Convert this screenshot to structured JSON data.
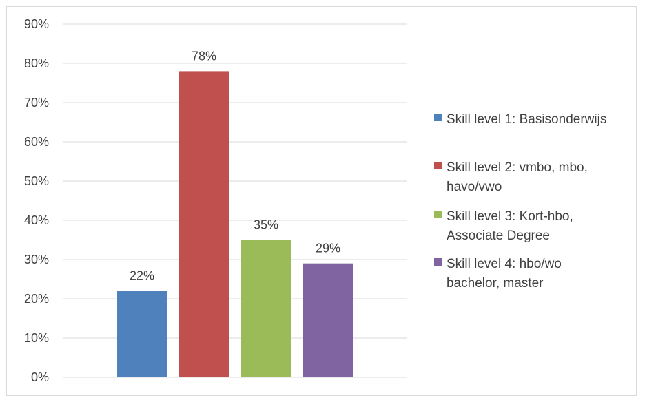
{
  "chart_data": {
    "type": "bar",
    "title": "",
    "xlabel": "",
    "ylabel": "",
    "ylim": [
      0,
      90
    ],
    "yticks": [
      "0%",
      "10%",
      "20%",
      "30%",
      "40%",
      "50%",
      "60%",
      "70%",
      "80%",
      "90%"
    ],
    "grid": true,
    "legend_position": "right",
    "series": [
      {
        "name": "Skill level 1: Basisonderwijs",
        "legend_lines": [
          "Skill level 1: Basisonderwijs"
        ],
        "value": 22,
        "label": "22%",
        "color": "#4f81bd"
      },
      {
        "name": "Skill level 2: vmbo, mbo, havo/vwo",
        "legend_lines": [
          "Skill level 2: vmbo, mbo,",
          "havo/vwo"
        ],
        "value": 78,
        "label": "78%",
        "color": "#c0504d"
      },
      {
        "name": "Skill level 3: Kort-hbo, Associate Degree",
        "legend_lines": [
          "Skill level 3: Kort-hbo,",
          "Associate Degree"
        ],
        "value": 35,
        "label": "35%",
        "color": "#9bbb59"
      },
      {
        "name": "Skill level 4: hbo/wo bachelor, master",
        "legend_lines": [
          "Skill level 4: hbo/wo",
          "bachelor, master"
        ],
        "value": 29,
        "label": "29%",
        "color": "#8064a2"
      }
    ]
  }
}
